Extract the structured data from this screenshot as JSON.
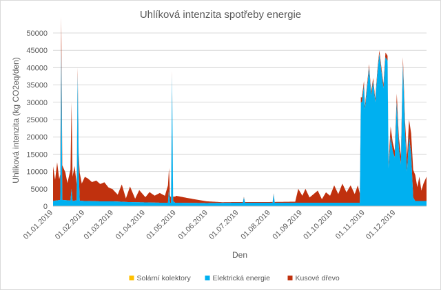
{
  "chart_data": {
    "type": "area",
    "stacked": true,
    "title": "Uhlíková intenzita spotřeby energie",
    "xlabel": "Den",
    "ylabel": "Uhlíková intenzita (kg CO2eq/den)",
    "ylim": [
      0,
      50000
    ],
    "yticks": [
      "0",
      "5000",
      "10000",
      "15000",
      "20000",
      "25000",
      "30000",
      "35000",
      "40000",
      "45000",
      "50000"
    ],
    "xticks": [
      "01.01.2019",
      "01.02.2019",
      "01.03.2019",
      "01.04.2019",
      "01.05.2019",
      "01.06.2019",
      "01.07.2019",
      "01.08.2019",
      "01.09.2019",
      "01.10.2019",
      "01.11.2019",
      "01.12.2019"
    ],
    "x_start": "01.01.2019",
    "x_end": "31.12.2019",
    "grid": "horizontal",
    "legend_position": "bottom",
    "legend": [
      "Solární kolektory",
      "Elektrická energie",
      "Kusové dřevo"
    ],
    "series": [
      {
        "name": "Solární kolektory",
        "color": "#ffc000",
        "points": [
          [
            "01.01.2019",
            0
          ],
          [
            "31.12.2019",
            0
          ]
        ]
      },
      {
        "name": "Elektrická energie",
        "color": "#00b0f0",
        "points": [
          [
            "01.01.2019",
            1500
          ],
          [
            "08.01.2019",
            1800
          ],
          [
            "09.01.2019",
            46000
          ],
          [
            "10.01.2019",
            1800
          ],
          [
            "18.01.2019",
            1600
          ],
          [
            "19.01.2019",
            5000
          ],
          [
            "20.01.2019",
            1500
          ],
          [
            "24.01.2019",
            1700
          ],
          [
            "25.01.2019",
            38000
          ],
          [
            "26.01.2019",
            10000
          ],
          [
            "27.01.2019",
            1600
          ],
          [
            "31.01.2019",
            1500
          ],
          [
            "15.02.2019",
            1400
          ],
          [
            "28.02.2019",
            1400
          ],
          [
            "15.03.2019",
            1200
          ],
          [
            "31.03.2019",
            1100
          ],
          [
            "15.04.2019",
            1000
          ],
          [
            "23.04.2019",
            1000
          ],
          [
            "24.04.2019",
            5000
          ],
          [
            "25.04.2019",
            1000
          ],
          [
            "26.04.2019",
            1000
          ],
          [
            "27.04.2019",
            38000
          ],
          [
            "28.04.2019",
            1500
          ],
          [
            "30.04.2019",
            1000
          ],
          [
            "31.05.2019",
            900
          ],
          [
            "30.06.2019",
            1000
          ],
          [
            "05.07.2019",
            1000
          ],
          [
            "06.07.2019",
            2500
          ],
          [
            "07.07.2019",
            1000
          ],
          [
            "31.07.2019",
            1000
          ],
          [
            "03.08.2019",
            1000
          ],
          [
            "04.08.2019",
            3500
          ],
          [
            "05.08.2019",
            1000
          ],
          [
            "31.08.2019",
            1000
          ],
          [
            "30.09.2019",
            1000
          ],
          [
            "15.10.2019",
            1000
          ],
          [
            "25.10.2019",
            1000
          ],
          [
            "27.10.2019",
            1000
          ],
          [
            "28.10.2019",
            30000
          ],
          [
            "29.10.2019",
            30000
          ],
          [
            "31.10.2019",
            35000
          ],
          [
            "01.11.2019",
            28000
          ],
          [
            "03.11.2019",
            34000
          ],
          [
            "05.11.2019",
            40000
          ],
          [
            "07.11.2019",
            32000
          ],
          [
            "09.11.2019",
            36000
          ],
          [
            "11.11.2019",
            30000
          ],
          [
            "13.11.2019",
            38000
          ],
          [
            "15.11.2019",
            44000
          ],
          [
            "17.11.2019",
            39000
          ],
          [
            "19.11.2019",
            34000
          ],
          [
            "21.11.2019",
            43000
          ],
          [
            "23.11.2019",
            42000
          ],
          [
            "24.11.2019",
            11000
          ],
          [
            "26.11.2019",
            20000
          ],
          [
            "28.11.2019",
            16000
          ],
          [
            "30.11.2019",
            14000
          ],
          [
            "02.12.2019",
            30000
          ],
          [
            "04.12.2019",
            17000
          ],
          [
            "06.12.2019",
            12000
          ],
          [
            "08.12.2019",
            41000
          ],
          [
            "10.12.2019",
            22000
          ],
          [
            "12.12.2019",
            10000
          ],
          [
            "14.12.2019",
            20000
          ],
          [
            "16.12.2019",
            15000
          ],
          [
            "18.12.2019",
            2500
          ],
          [
            "20.12.2019",
            1500
          ],
          [
            "24.12.2019",
            1500
          ],
          [
            "31.12.2019",
            1500
          ]
        ]
      },
      {
        "name": "Kusové dřevo",
        "color": "#c0310e",
        "points": [
          [
            "01.01.2019",
            10000
          ],
          [
            "03.01.2019",
            6000
          ],
          [
            "05.01.2019",
            11000
          ],
          [
            "07.01.2019",
            6000
          ],
          [
            "10.01.2019",
            10000
          ],
          [
            "13.01.2019",
            8000
          ],
          [
            "15.01.2019",
            5000
          ],
          [
            "18.01.2019",
            9000
          ],
          [
            "19.01.2019",
            25000
          ],
          [
            "20.01.2019",
            7000
          ],
          [
            "22.01.2019",
            10000
          ],
          [
            "25.01.2019",
            2000
          ],
          [
            "27.01.2019",
            8000
          ],
          [
            "29.01.2019",
            5000
          ],
          [
            "01.02.2019",
            7000
          ],
          [
            "04.02.2019",
            6500
          ],
          [
            "08.02.2019",
            5500
          ],
          [
            "12.02.2019",
            6000
          ],
          [
            "16.02.2019",
            5000
          ],
          [
            "20.02.2019",
            5500
          ],
          [
            "24.02.2019",
            4000
          ],
          [
            "28.02.2019",
            3500
          ],
          [
            "05.03.2019",
            2000
          ],
          [
            "09.03.2019",
            5000
          ],
          [
            "13.03.2019",
            1000
          ],
          [
            "17.03.2019",
            4500
          ],
          [
            "22.03.2019",
            1000
          ],
          [
            "26.03.2019",
            3500
          ],
          [
            "01.04.2019",
            1500
          ],
          [
            "05.04.2019",
            3000
          ],
          [
            "10.04.2019",
            2000
          ],
          [
            "15.04.2019",
            2800
          ],
          [
            "20.04.2019",
            2000
          ],
          [
            "24.04.2019",
            6000
          ],
          [
            "25.04.2019",
            2000
          ],
          [
            "27.04.2019",
            1000
          ],
          [
            "01.05.2019",
            2000
          ],
          [
            "10.05.2019",
            1500
          ],
          [
            "20.05.2019",
            1000
          ],
          [
            "31.05.2019",
            500
          ],
          [
            "15.06.2019",
            200
          ],
          [
            "30.06.2019",
            200
          ],
          [
            "31.07.2019",
            200
          ],
          [
            "25.08.2019",
            300
          ],
          [
            "28.08.2019",
            4000
          ],
          [
            "01.09.2019",
            2000
          ],
          [
            "04.09.2019",
            4000
          ],
          [
            "08.09.2019",
            1500
          ],
          [
            "12.09.2019",
            2500
          ],
          [
            "16.09.2019",
            3500
          ],
          [
            "20.09.2019",
            1000
          ],
          [
            "24.09.2019",
            3000
          ],
          [
            "28.09.2019",
            2000
          ],
          [
            "02.10.2019",
            5000
          ],
          [
            "06.10.2019",
            2500
          ],
          [
            "10.10.2019",
            5500
          ],
          [
            "14.10.2019",
            3000
          ],
          [
            "18.10.2019",
            5000
          ],
          [
            "22.10.2019",
            2500
          ],
          [
            "25.10.2019",
            5000
          ],
          [
            "28.10.2019",
            1500
          ],
          [
            "01.11.2019",
            1000
          ],
          [
            "15.11.2019",
            1000
          ],
          [
            "24.11.2019",
            1500
          ],
          [
            "26.11.2019",
            3000
          ],
          [
            "30.11.2019",
            2000
          ],
          [
            "04.12.2019",
            3000
          ],
          [
            "08.12.2019",
            2000
          ],
          [
            "12.12.2019",
            4000
          ],
          [
            "16.12.2019",
            6000
          ],
          [
            "18.12.2019",
            8000
          ],
          [
            "20.12.2019",
            7500
          ],
          [
            "22.12.2019",
            4000
          ],
          [
            "24.12.2019",
            7000
          ],
          [
            "26.12.2019",
            3000
          ],
          [
            "28.12.2019",
            5000
          ],
          [
            "31.12.2019",
            7000
          ]
        ]
      }
    ]
  }
}
